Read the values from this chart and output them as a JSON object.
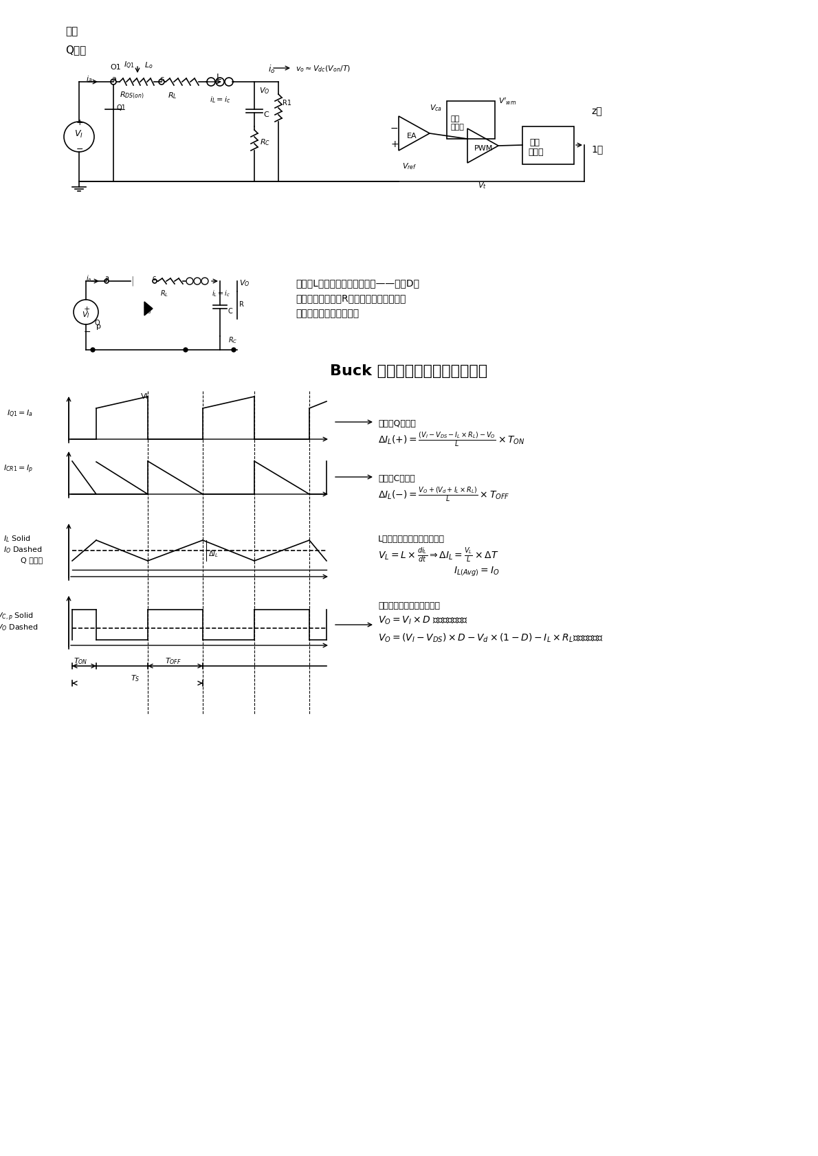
{
  "title": "Buck 电路的原理分析和参数设计",
  "bg_color": "#ffffff",
  "text_color": "#000000",
  "page_width": 11.9,
  "page_height": 16.83,
  "top_text1": "压。",
  "top_text2": "Q导通",
  "right_text1": "z供",
  "right_text2": "1容",
  "q_on_desc": "电感蓄L中储存的能量通过续流——假冒D形\n成的回路，对负载R继续供电，从而保证了\n负载端获得连续的电流。",
  "formula1_label": "导通时Q的电流",
  "formula1": "$\\Delta I_L(+) = \\frac{(V_I - V_{DS} - I_L \\times R_L) - V_O}{L} \\times T_{ON}$",
  "formula2_label": "闭合时C的电流",
  "formula2": "$\\Delta I_L(-) = \\frac{V_O + (V_d + I_L \\times R_L)}{L} \\times T_{OFF}$",
  "formula3_label": "L的电流和输出电流的关系。",
  "formula3a": "$V_L = L \\times \\frac{di_L}{dt} \\Rightarrow \\Delta I_L = \\frac{V_L}{L} \\times \\Delta T$",
  "formula3b": "$I_{L(Avg)} = I_O$",
  "formula4_label": "输出电压与输入电压的关系",
  "formula4a": "$V_O = V_I \\times D$ （不考虑损耗）",
  "formula4b": "$V_O = (V_I - V_{DS}) \\times D - V_d \\times (1-D) - I_L \\times R_L$（考虑损耗）",
  "waveform_labels": {
    "iq1": "$I_{Q1} = I_a$",
    "icr1": "$I_{CR1} = I_p$",
    "il_solid": "$I_L$ Solid",
    "io_dashed": "$I_O$ Dashed",
    "q_close": "Q 闭合：",
    "vc_solid": "$V_{C,p}$ Solid",
    "vo_dashed": "$V_O$ Dashed",
    "ton": "$T_{ON}$",
    "toff": "$T_{OFF}$",
    "ts": "$T_S$",
    "vi_label": "VI",
    "delta_il": "$\\Delta I_L$"
  }
}
